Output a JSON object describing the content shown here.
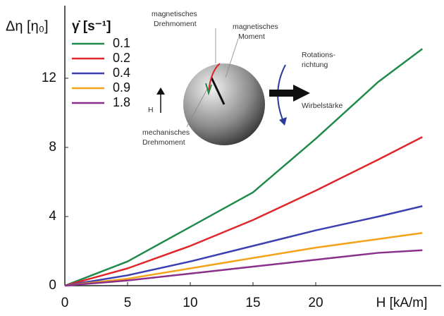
{
  "chart_data": {
    "type": "line",
    "y_label": "Δη [η₀]",
    "x_label": "H [kA/m]",
    "legend_title": "γ̇ [s⁻¹]",
    "x": [
      0,
      5,
      10,
      15,
      20,
      25,
      28.5
    ],
    "series": [
      {
        "name": "0.1",
        "color": "#1f8a4c",
        "values": [
          0,
          1.4,
          3.4,
          5.4,
          8.5,
          11.8,
          13.7
        ]
      },
      {
        "name": "0.2",
        "color": "#e0262b",
        "values": [
          0,
          1.0,
          2.3,
          3.8,
          5.5,
          7.3,
          8.6
        ]
      },
      {
        "name": "0.4",
        "color": "#3b3fb0",
        "values": [
          0,
          0.6,
          1.4,
          2.3,
          3.2,
          4.0,
          4.6
        ]
      },
      {
        "name": "0.9",
        "color": "#f4a21a",
        "values": [
          0,
          0.4,
          1.0,
          1.6,
          2.2,
          2.7,
          3.05
        ]
      },
      {
        "name": "1.8",
        "color": "#8a2f8a",
        "values": [
          0,
          0.3,
          0.7,
          1.1,
          1.5,
          1.9,
          2.05
        ]
      }
    ],
    "xlim": [
      0,
      30
    ],
    "xticks": [
      0,
      5,
      10,
      15,
      20
    ],
    "ylim": [
      0,
      16.2
    ],
    "yticks": [
      0,
      4,
      8,
      12
    ],
    "grid": false,
    "annotations": [
      "magnetisches",
      "Drehmoment",
      "magnetisches",
      "Moment",
      "Rotations-",
      "richtung",
      "Wirbelstärke",
      "H",
      "mechanisches",
      "Drehmoment"
    ]
  }
}
